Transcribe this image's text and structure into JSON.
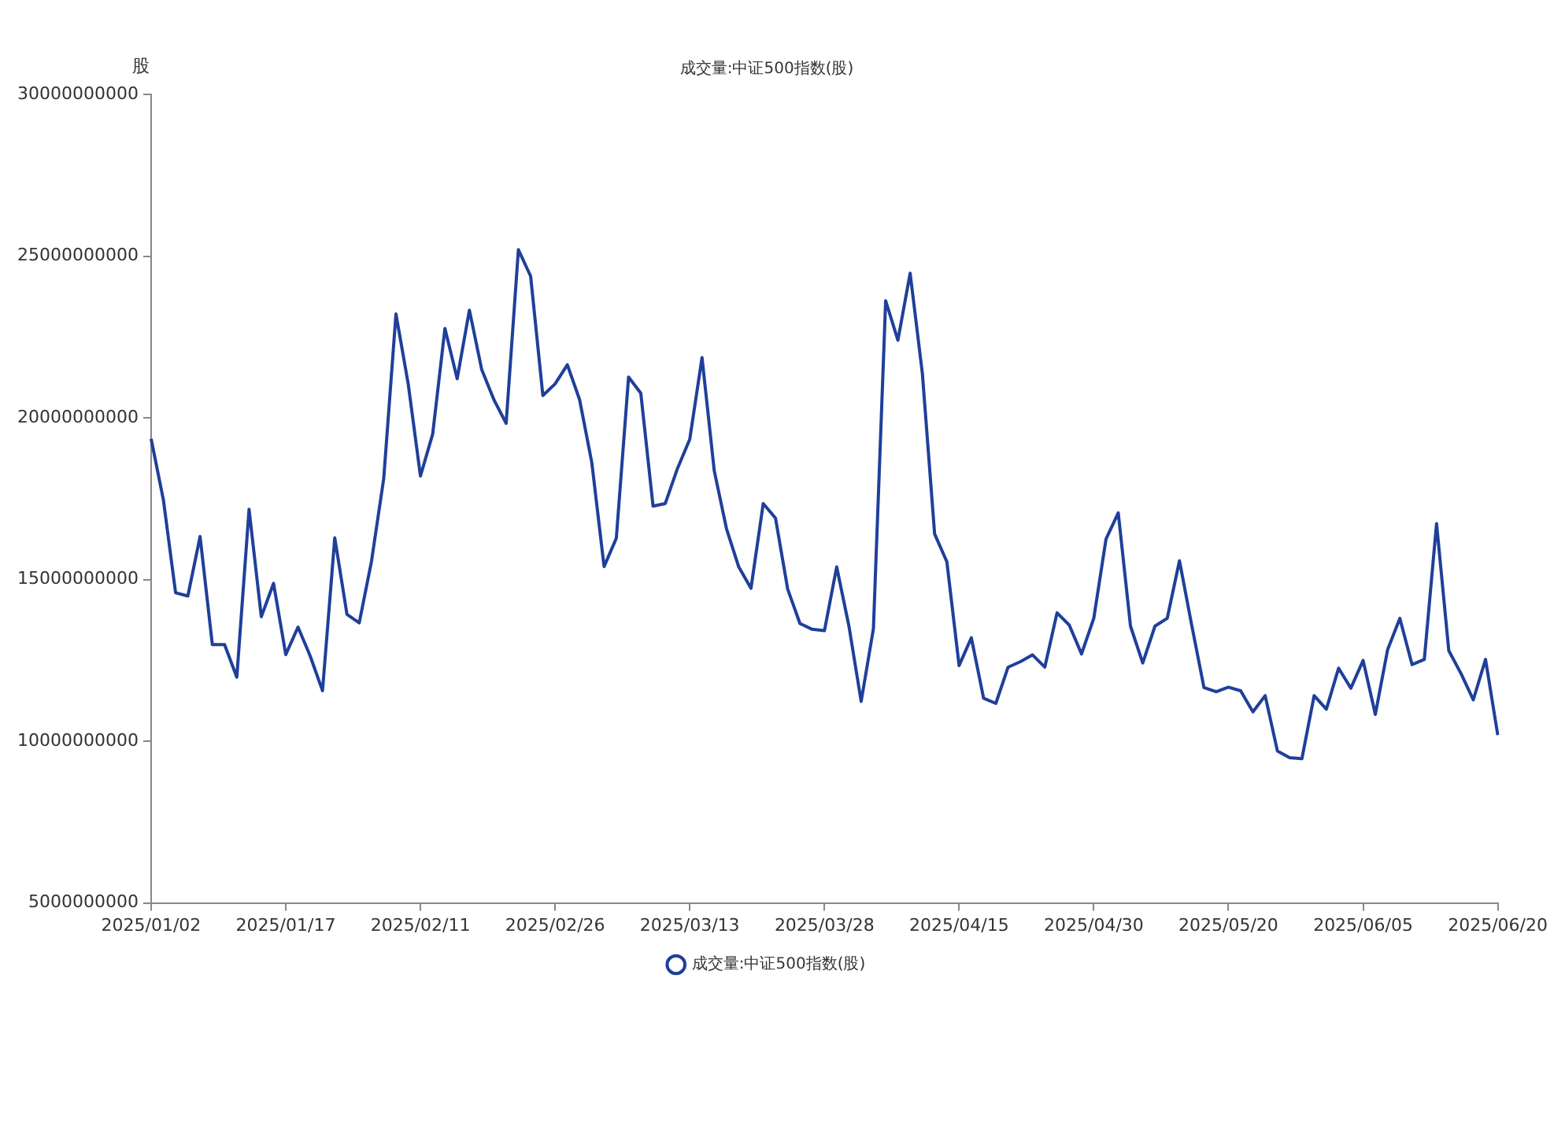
{
  "chart_data": {
    "type": "line",
    "title": "成交量:中证500指数(股)",
    "ylabel": "股",
    "categories": [
      "2025/01/02",
      null,
      null,
      null,
      null,
      null,
      null,
      null,
      null,
      null,
      null,
      "2025/01/17",
      null,
      null,
      null,
      null,
      null,
      null,
      null,
      null,
      null,
      null,
      "2025/02/11",
      null,
      null,
      null,
      null,
      null,
      null,
      null,
      null,
      null,
      null,
      "2025/02/26",
      null,
      null,
      null,
      null,
      null,
      null,
      null,
      null,
      null,
      null,
      "2025/03/13",
      null,
      null,
      null,
      null,
      null,
      null,
      null,
      null,
      null,
      null,
      "2025/03/28",
      null,
      null,
      null,
      null,
      null,
      null,
      null,
      null,
      null,
      null,
      "2025/04/15",
      null,
      null,
      null,
      null,
      null,
      null,
      null,
      null,
      null,
      null,
      "2025/04/30",
      null,
      null,
      null,
      null,
      null,
      null,
      null,
      null,
      null,
      null,
      "2025/05/20",
      null,
      null,
      null,
      null,
      null,
      null,
      null,
      null,
      null,
      null,
      "2025/06/05",
      null,
      null,
      null,
      null,
      null,
      null,
      null,
      null,
      null,
      null,
      "2025/06/20"
    ],
    "series": [
      {
        "name": "成交量:中证500指数(股)",
        "color": "#1f3f9a",
        "values": [
          19350000000,
          17470000000,
          14590000000,
          14490000000,
          16330000000,
          12990000000,
          12990000000,
          11980000000,
          17170000000,
          13850000000,
          14880000000,
          12680000000,
          13530000000,
          12630000000,
          11560000000,
          16290000000,
          13920000000,
          13660000000,
          15560000000,
          18120000000,
          23210000000,
          21050000000,
          18200000000,
          19500000000,
          22760000000,
          21210000000,
          23330000000,
          21500000000,
          20560000000,
          19830000000,
          25200000000,
          24380000000,
          20690000000,
          21050000000,
          21640000000,
          20560000000,
          18610000000,
          15400000000,
          16280000000,
          21260000000,
          20760000000,
          17270000000,
          17350000000,
          18440000000,
          19340000000,
          21860000000,
          18360000000,
          16570000000,
          15390000000,
          14730000000,
          17350000000,
          16900000000,
          14700000000,
          13640000000,
          13460000000,
          13420000000,
          15390000000,
          13560000000,
          11230000000,
          13480000000,
          23620000000,
          22400000000,
          24470000000,
          21370000000,
          16410000000,
          15550000000,
          12340000000,
          13200000000,
          11330000000,
          11170000000,
          12290000000,
          12460000000,
          12670000000,
          12290000000,
          13970000000,
          13590000000,
          12700000000,
          13800000000,
          16250000000,
          17060000000,
          13560000000,
          12420000000,
          13560000000,
          13800000000,
          15580000000,
          13590000000,
          11660000000,
          11530000000,
          11670000000,
          11560000000,
          10910000000,
          11410000000,
          9700000000,
          9490000000,
          9460000000,
          11410000000,
          10990000000,
          12260000000,
          11640000000,
          12500000000,
          10830000000,
          12830000000,
          13800000000,
          12370000000,
          12530000000,
          16730000000,
          12800000000,
          12090000000,
          11280000000,
          12530000000,
          10190000000
        ]
      }
    ],
    "ylim": [
      5000000000,
      30000000000
    ],
    "yticks": [
      5000000000,
      10000000000,
      15000000000,
      20000000000,
      25000000000,
      30000000000
    ],
    "grid": false,
    "legend": "bottom",
    "marker": "none",
    "line_style": "solid"
  }
}
